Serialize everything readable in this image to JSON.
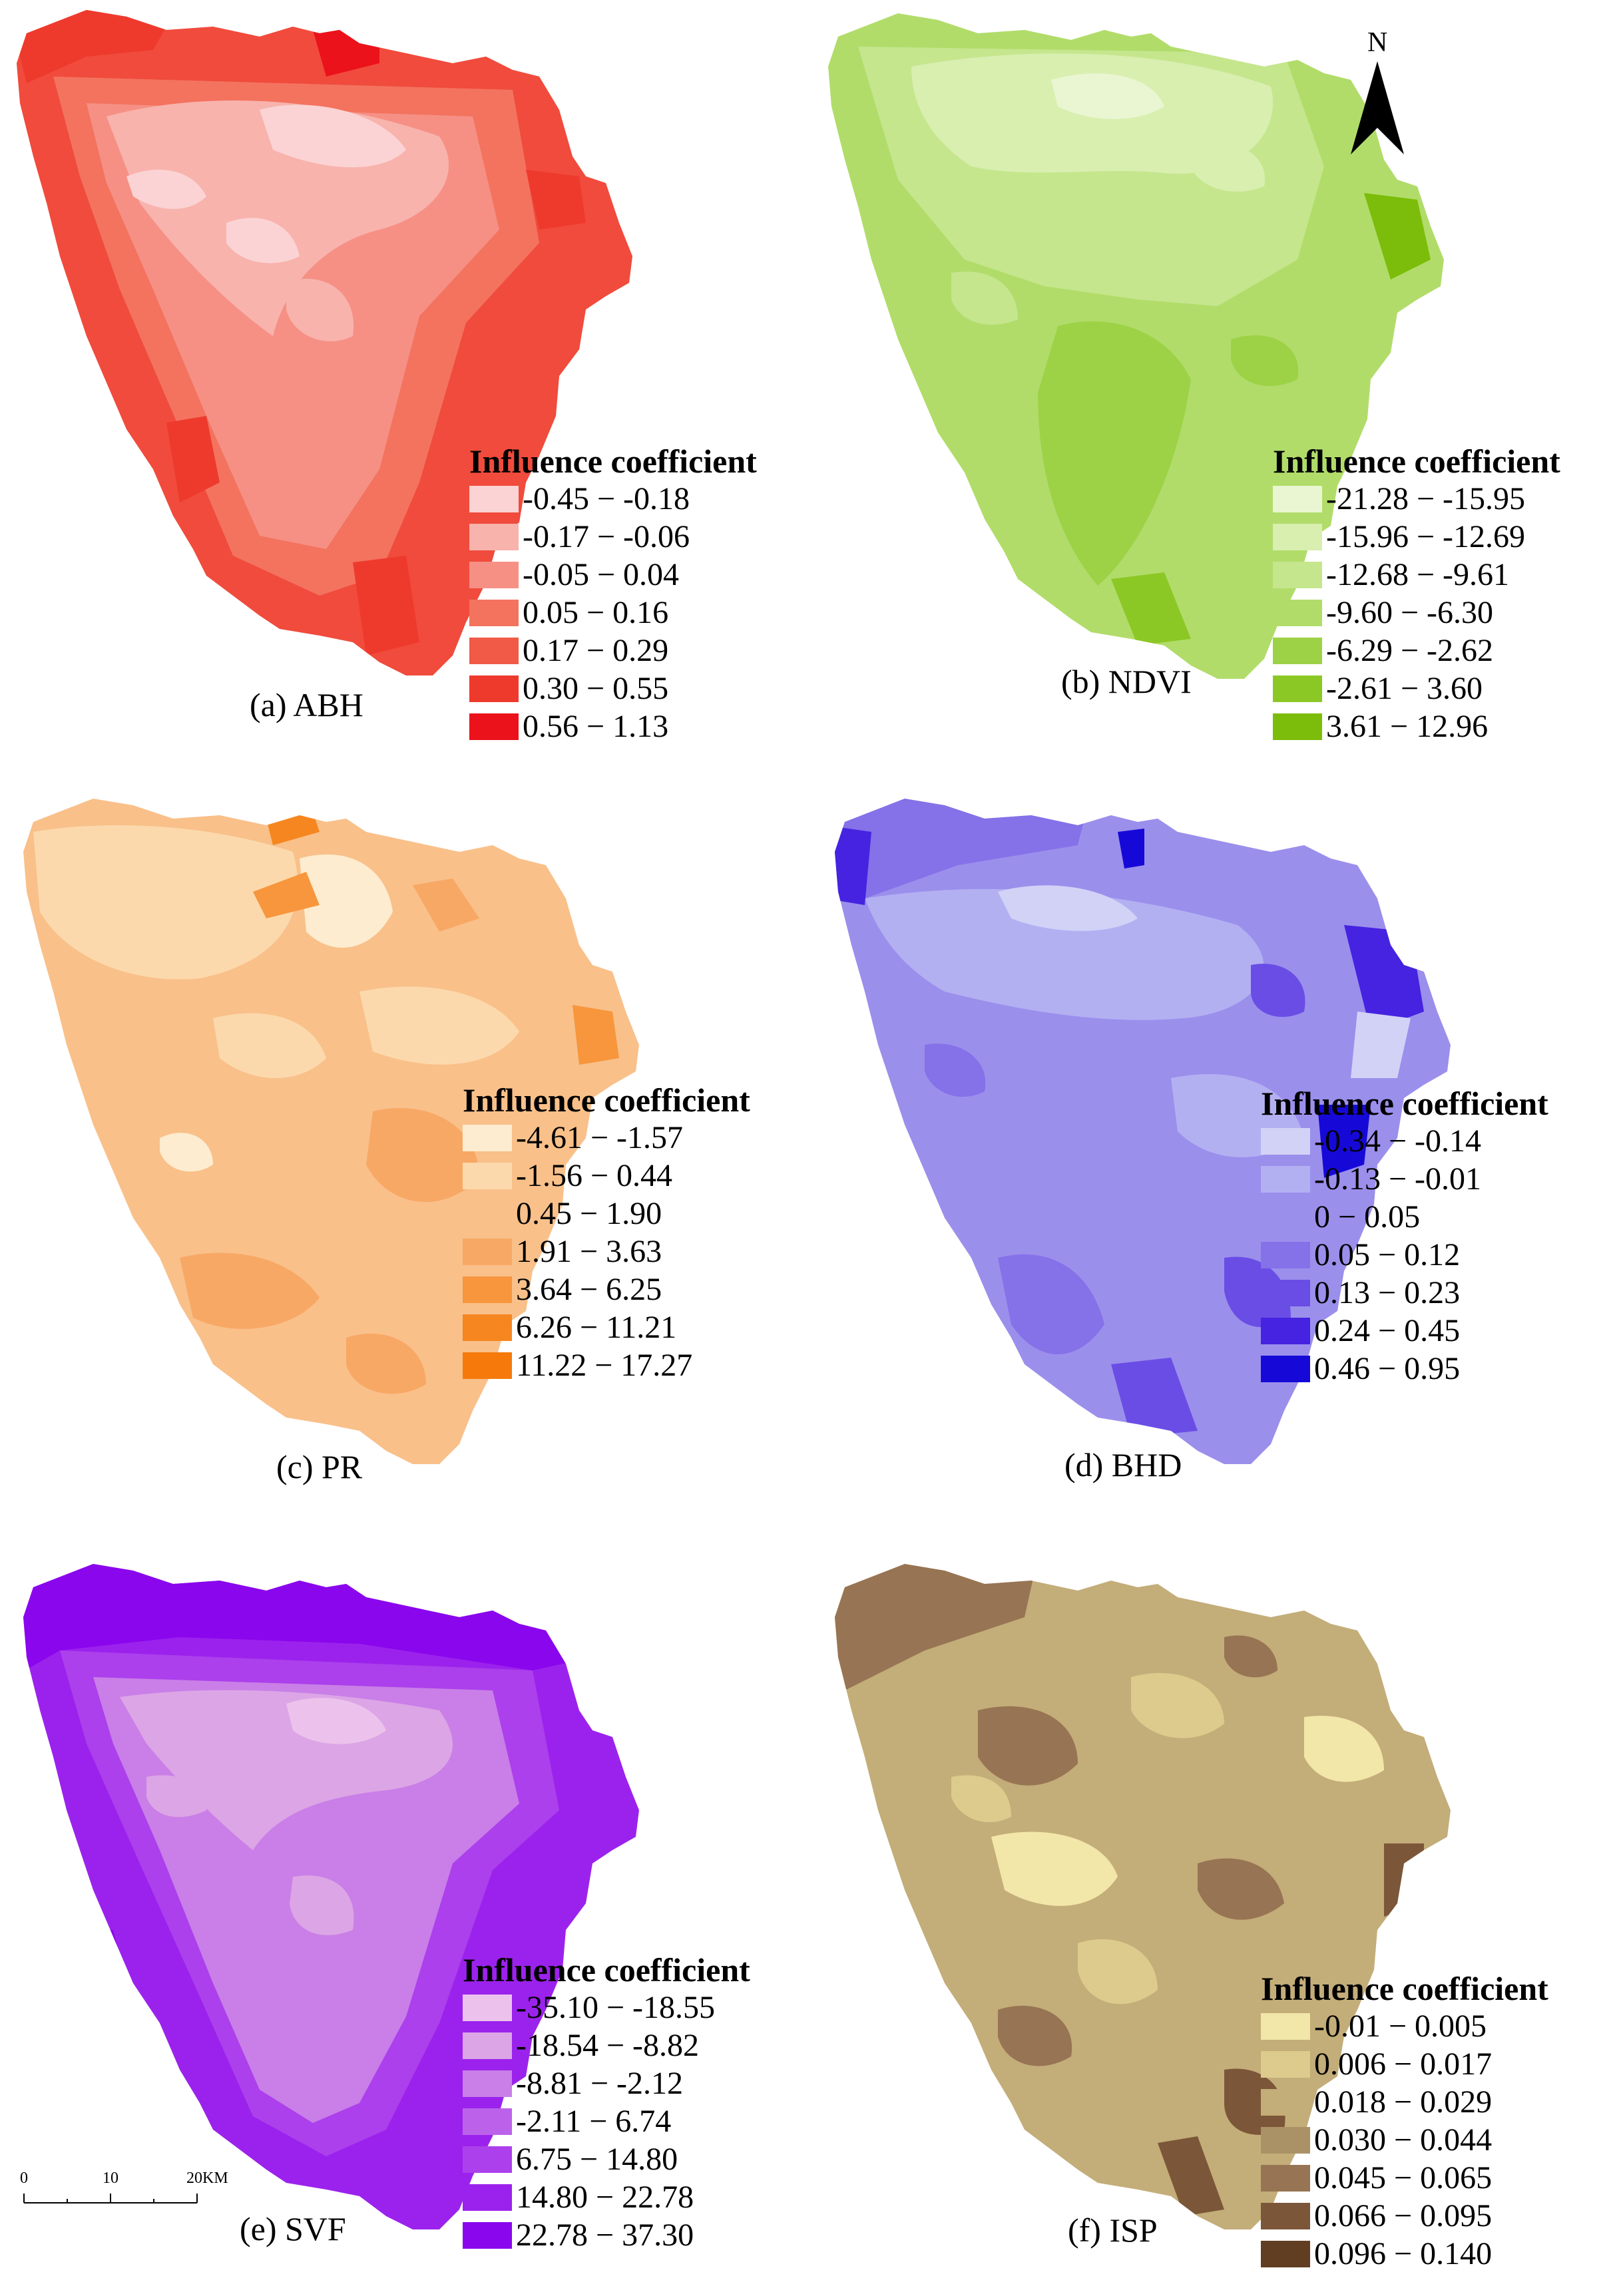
{
  "figure": {
    "legend_title": "Influence coefficient",
    "north_label": "N",
    "scale_bar": {
      "ticks": [
        "0",
        "10",
        "20KM"
      ]
    }
  },
  "panels": [
    {
      "id": "a",
      "caption": "(a) ABH",
      "classes": [
        {
          "range": "-0.45 − -0.18",
          "color": "#fbd3d4"
        },
        {
          "range": "-0.17 − -0.06",
          "color": "#f8b3ad"
        },
        {
          "range": "-0.05 − 0.04",
          "color": "#f69085"
        },
        {
          "range": "0.05 − 0.16",
          "color": "#f3735f"
        },
        {
          "range": "0.17 − 0.29",
          "color": "#f05a46"
        },
        {
          "range": "0.30 − 0.55",
          "color": "#ee3a2d"
        },
        {
          "range": "0.56 − 1.13",
          "color": "#eb121b"
        }
      ]
    },
    {
      "id": "b",
      "caption": "(b) NDVI",
      "classes": [
        {
          "range": "-21.28 − -15.95",
          "color": "#eaf6d2"
        },
        {
          "range": "-15.96 − -12.69",
          "color": "#d8efb0"
        },
        {
          "range": "-12.68 − -9.61",
          "color": "#c5e68d"
        },
        {
          "range": "-9.60 − -6.30",
          "color": "#b1dc6a"
        },
        {
          "range": "-6.29 − -2.62",
          "color": "#9dd247"
        },
        {
          "range": "-2.61 − 3.60",
          "color": "#8cc825"
        },
        {
          "range": "3.61 − 12.96",
          "color": "#7bbd0a"
        }
      ]
    },
    {
      "id": "c",
      "caption": "(c) PR",
      "classes": [
        {
          "range": "-4.61 − -1.57",
          "color": "#fdeccf"
        },
        {
          "range": "-1.56 − 0.44",
          "color": "#fcd9ac"
        },
        {
          "range": "0.45 − 1.90",
          "color": "#f9c08a"
        },
        {
          "range": "1.91 − 3.63",
          "color": "#f8a865"
        },
        {
          "range": "3.64 − 6.25",
          "color": "#f7963d"
        },
        {
          "range": "6.26 − 11.21",
          "color": "#f6861f"
        },
        {
          "range": "11.22 − 17.27",
          "color": "#f57a0b"
        }
      ]
    },
    {
      "id": "d",
      "caption": "(d) BHD",
      "classes": [
        {
          "range": "-0.34 − -0.14",
          "color": "#d2d2f7"
        },
        {
          "range": "-0.13 − -0.01",
          "color": "#b3b0f2"
        },
        {
          "range": "0 − 0.05",
          "color": "#9b8fec"
        },
        {
          "range": "0.05 − 0.12",
          "color": "#8571e8"
        },
        {
          "range": "0.13 − 0.23",
          "color": "#6a4de5"
        },
        {
          "range": "0.24 − 0.45",
          "color": "#4523e0"
        },
        {
          "range": "0.46 − 0.95",
          "color": "#1609d8"
        }
      ]
    },
    {
      "id": "e",
      "caption": "(e) SVF",
      "classes": [
        {
          "range": "-35.10 − -18.55",
          "color": "#ecc2ec"
        },
        {
          "range": "-18.54 − -8.82",
          "color": "#dca5e6"
        },
        {
          "range": "-8.81 − -2.12",
          "color": "#c97fe7"
        },
        {
          "range": "-2.11 − 6.74",
          "color": "#bc62ea"
        },
        {
          "range": "6.75 − 14.80",
          "color": "#ac40ec"
        },
        {
          "range": "14.80 − 22.78",
          "color": "#9b22ec"
        },
        {
          "range": "22.78 − 37.30",
          "color": "#8a06ed"
        }
      ]
    },
    {
      "id": "f",
      "caption": "(f) ISP",
      "classes": [
        {
          "range": "-0.01 − 0.005",
          "color": "#f2e6a8"
        },
        {
          "range": "0.006 − 0.017",
          "color": "#dccb8c"
        },
        {
          "range": "0.018 − 0.029",
          "color": "#c3ad79"
        },
        {
          "range": "0.030 − 0.044",
          "color": "#ab9266"
        },
        {
          "range": "0.045 − 0.065",
          "color": "#977453"
        },
        {
          "range": "0.066 − 0.095",
          "color": "#7c5639"
        },
        {
          "range": "0.096 − 0.140",
          "color": "#613e22"
        }
      ]
    }
  ]
}
